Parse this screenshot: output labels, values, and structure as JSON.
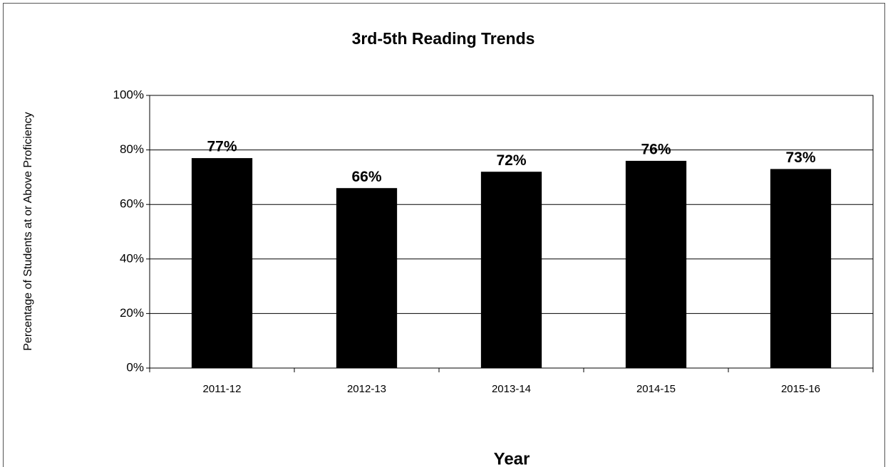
{
  "chart_data": {
    "type": "bar",
    "title": "3rd-5th Reading Trends",
    "x_label": "Year",
    "y_label": "Percentage of Students at or Above Proficiency",
    "categories": [
      "2011-12",
      "2012-13",
      "2013-14",
      "2014-15",
      "2015-16"
    ],
    "values": [
      77,
      66,
      72,
      76,
      73
    ],
    "value_labels": [
      "77%",
      "66%",
      "72%",
      "76%",
      "73%"
    ],
    "color": "#000000",
    "ylim": [
      0,
      100
    ],
    "yticks": [
      {
        "value": 0,
        "label": "0%"
      },
      {
        "value": 20,
        "label": "20%"
      },
      {
        "value": 40,
        "label": "40%"
      },
      {
        "value": 60,
        "label": "60%"
      },
      {
        "value": 80,
        "label": "80%"
      },
      {
        "value": 100,
        "label": "100%"
      }
    ],
    "grid": true
  }
}
